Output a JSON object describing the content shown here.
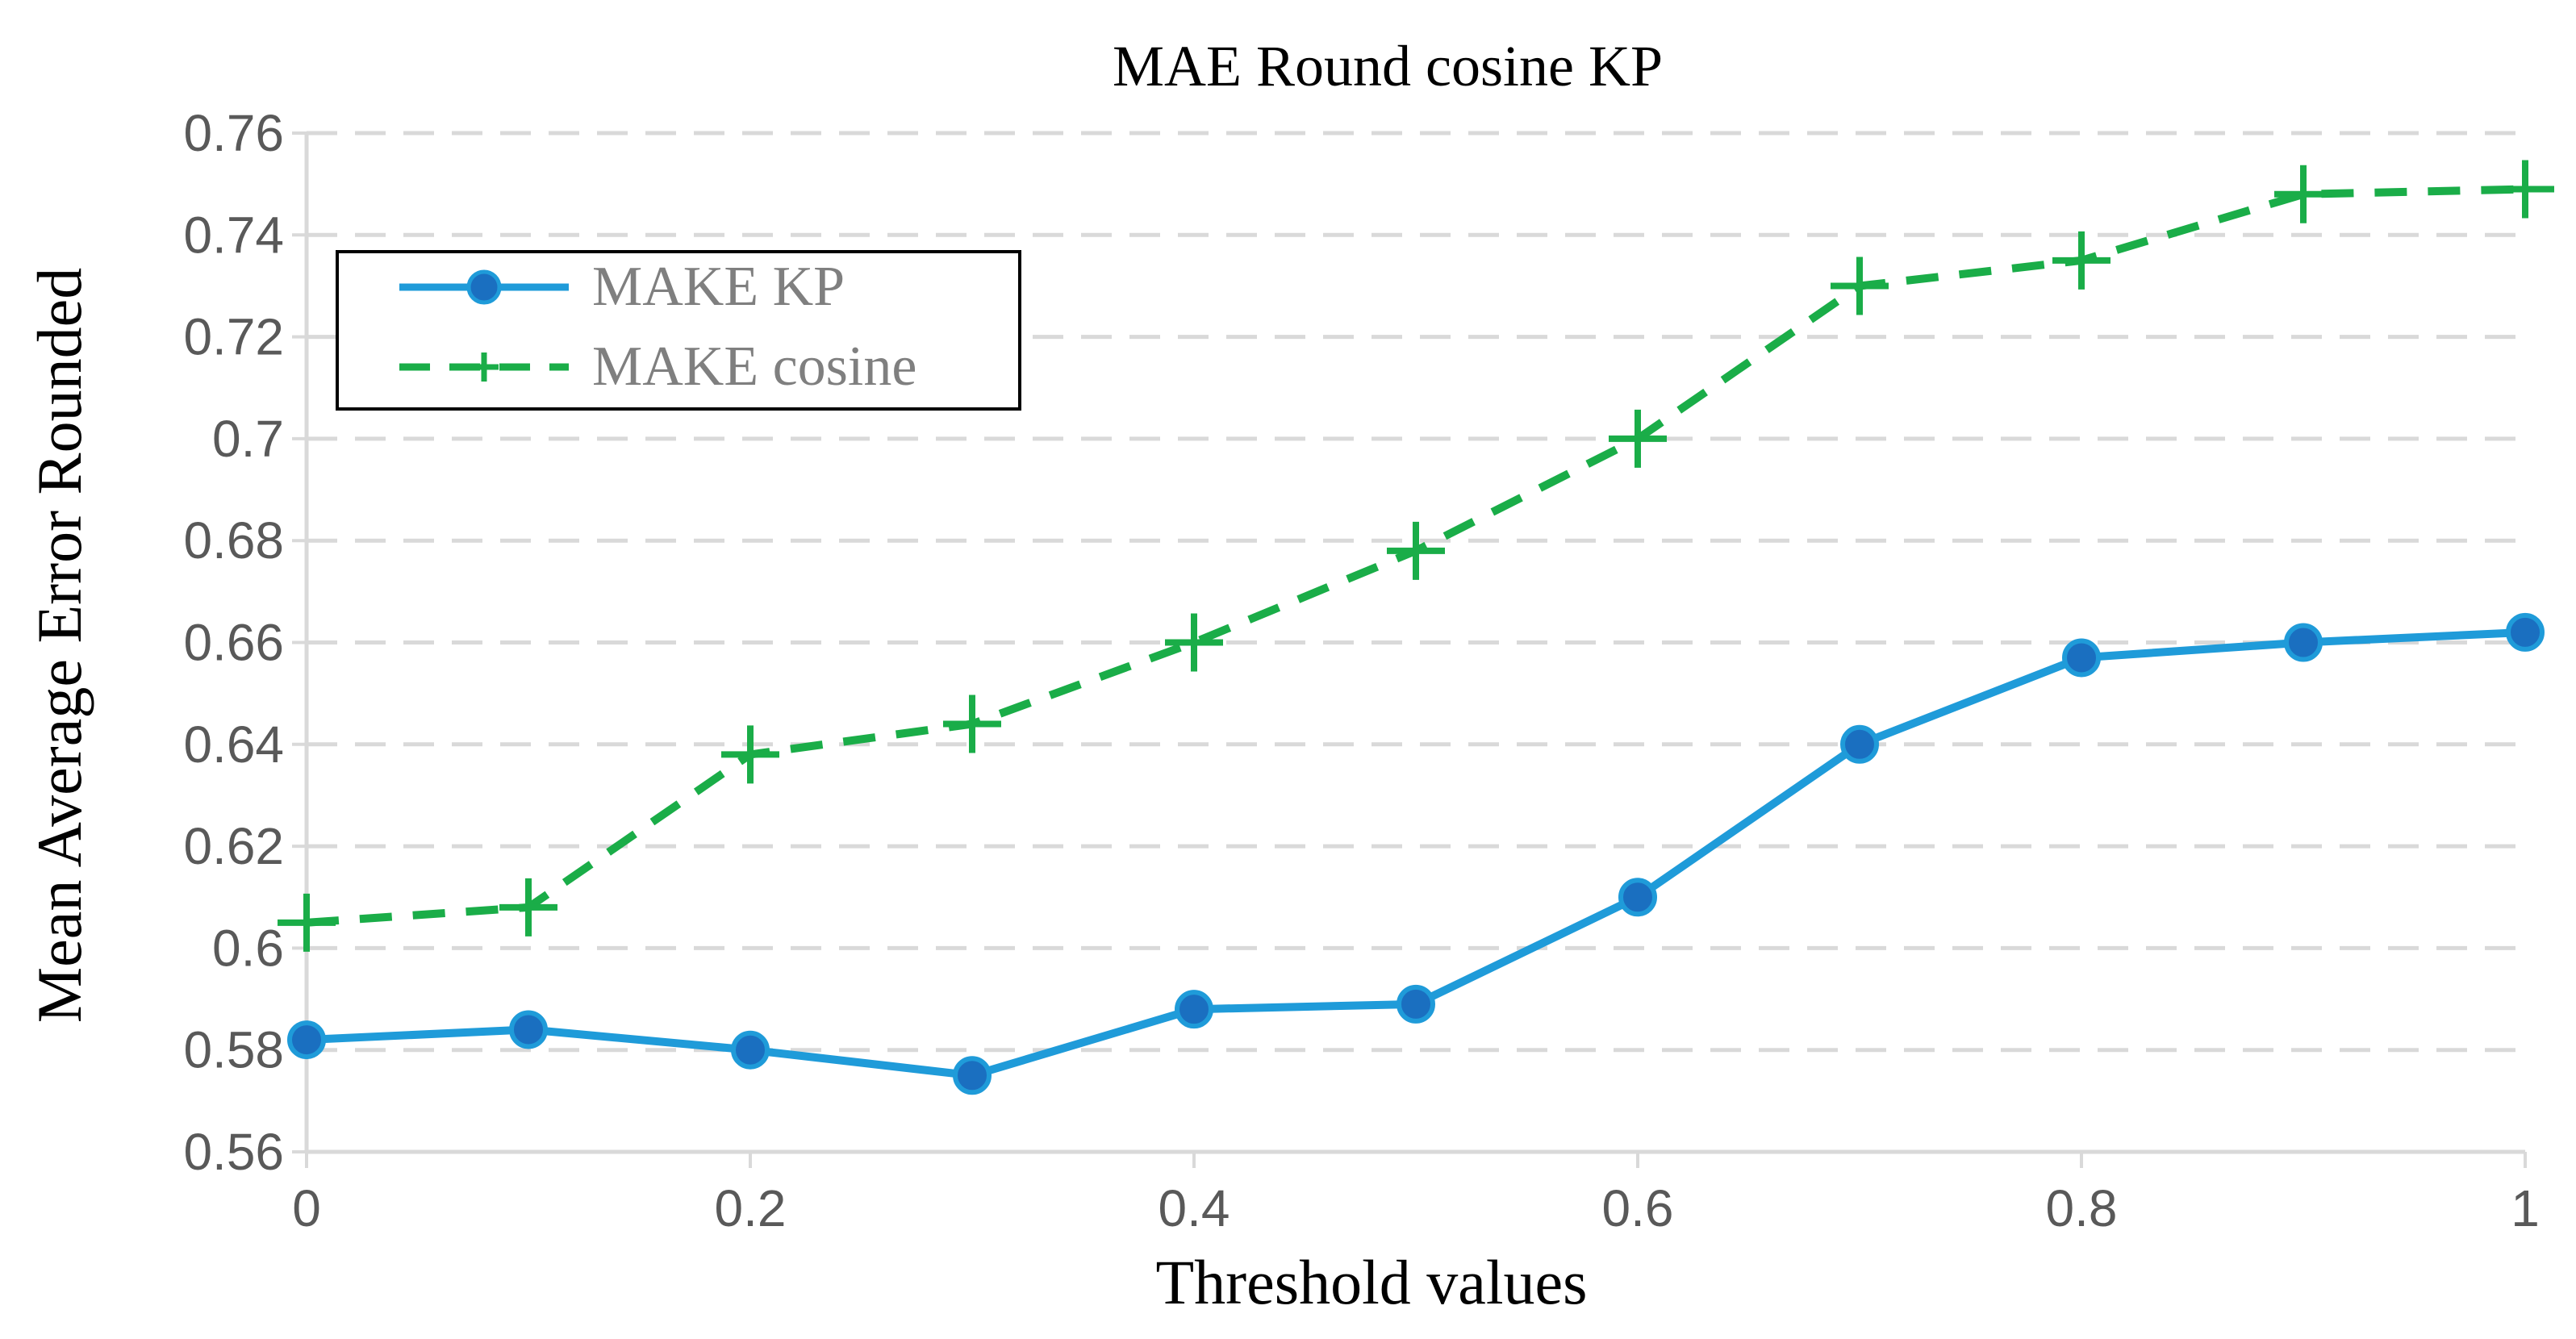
{
  "chart_data": {
    "type": "line",
    "title": "MAE Round cosine KP",
    "xlabel": "Threshold values",
    "ylabel": "Mean Average Error Rounded",
    "x": [
      0,
      0.1,
      0.2,
      0.3,
      0.4,
      0.5,
      0.6,
      0.7,
      0.8,
      0.9,
      1
    ],
    "xticks": [
      0,
      0.2,
      0.4,
      0.6,
      0.8,
      1
    ],
    "xtick_labels": [
      "0",
      "0.2",
      "0.4",
      "0.6",
      "0.8",
      "1"
    ],
    "xlim": [
      0,
      1
    ],
    "ylim": [
      0.56,
      0.76
    ],
    "yticks": [
      0.56,
      0.58,
      0.6,
      0.62,
      0.64,
      0.66,
      0.68,
      0.7,
      0.72,
      0.74,
      0.76
    ],
    "ytick_labels": [
      "0.56",
      "0.58",
      "0.6",
      "0.62",
      "0.64",
      "0.66",
      "0.68",
      "0.7",
      "0.72",
      "0.74",
      "0.76"
    ],
    "grid": true,
    "legend_position": "top-left",
    "series": [
      {
        "name": "MAKE KP",
        "style": "solid",
        "marker": "circle",
        "color": "#1f9bd9",
        "marker_color": "#1a6fc0",
        "values": [
          0.582,
          0.584,
          0.58,
          0.575,
          0.588,
          0.589,
          0.61,
          0.64,
          0.657,
          0.66,
          0.662
        ]
      },
      {
        "name": "MAKE cosine",
        "style": "dashed",
        "marker": "plus",
        "color": "#1aad48",
        "values": [
          0.605,
          0.608,
          0.638,
          0.644,
          0.66,
          0.678,
          0.7,
          0.73,
          0.735,
          0.748,
          0.749
        ]
      }
    ],
    "colors": {
      "grid": "#d9d9d9",
      "axis": "#d9d9d9",
      "tick_text": "#595959",
      "title_text": "#000000",
      "legend_text": "#7f7f7f",
      "legend_border": "#000000"
    }
  }
}
